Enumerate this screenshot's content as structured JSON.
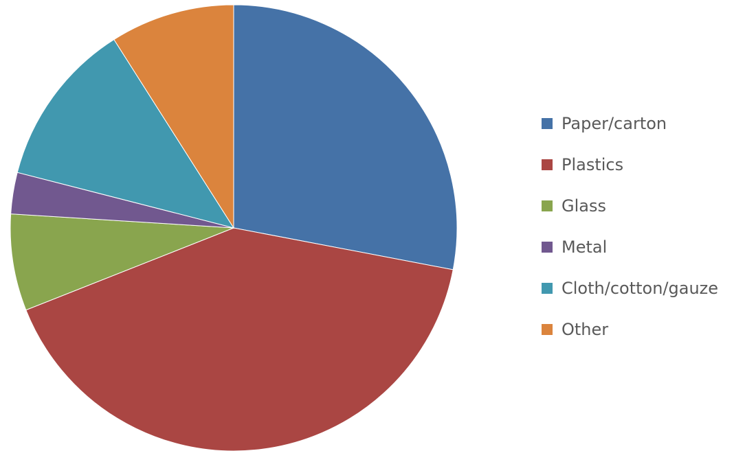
{
  "chart_data": {
    "type": "pie",
    "start_angle_deg": 0,
    "direction": "clockwise",
    "legend_position": "right",
    "slices": [
      {
        "label": "Paper/carton",
        "value": 28,
        "color": "#4572A7"
      },
      {
        "label": "Plastics",
        "value": 41,
        "color": "#AA4643"
      },
      {
        "label": "Glass",
        "value": 7,
        "color": "#89A54E"
      },
      {
        "label": "Metal",
        "value": 3,
        "color": "#71588F"
      },
      {
        "label": "Cloth/cotton/gauze",
        "value": 12,
        "color": "#4198AF"
      },
      {
        "label": "Other",
        "value": 9,
        "color": "#DB843D"
      }
    ]
  }
}
